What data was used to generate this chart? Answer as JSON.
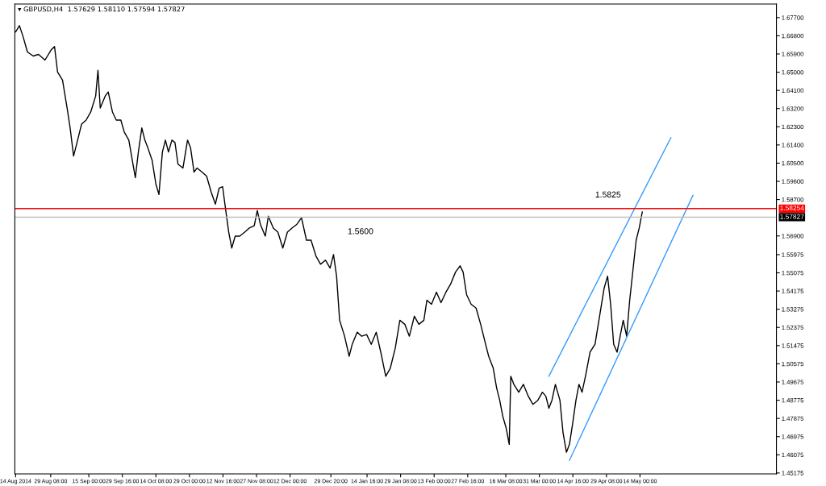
{
  "chart_data": {
    "type": "line",
    "title": "▾ GBPUSD,H4  1.57629 1.58110 1.57594 1.57827",
    "xlim": [
      "2014-08-13T16:00",
      "2015-07-12T16:00"
    ],
    "ylim": [
      1.4513,
      1.6837
    ],
    "xticks": [
      {
        "value": "2014-08-14T00:00",
        "label": "14 Aug 2014"
      },
      {
        "value": "2014-08-29T08:00",
        "label": "29 Aug 08:00"
      },
      {
        "value": "2014-09-15T00:00",
        "label": "15 Sep 00:00"
      },
      {
        "value": "2014-09-29T16:00",
        "label": "29 Sep 16:00"
      },
      {
        "value": "2014-10-14T08:00",
        "label": "14 Oct 08:00"
      },
      {
        "value": "2014-10-29T00:00",
        "label": "29 Oct 00:00"
      },
      {
        "value": "2014-11-12T16:00",
        "label": "12 Nov 16:00"
      },
      {
        "value": "2014-11-27T08:00",
        "label": "27 Nov 08:00"
      },
      {
        "value": "2014-12-12T00:00",
        "label": "12 Dec 00:00"
      },
      {
        "value": "2014-12-29T20:00",
        "label": "29 Dec 20:00"
      },
      {
        "value": "2015-01-14T16:00",
        "label": "14 Jan 16:00"
      },
      {
        "value": "2015-01-29T08:00",
        "label": "29 Jan 08:00"
      },
      {
        "value": "2015-02-13T00:00",
        "label": "13 Feb 00:00"
      },
      {
        "value": "2015-02-27T16:00",
        "label": "27 Feb 16:00"
      },
      {
        "value": "2015-03-16T08:00",
        "label": "16 Mar 08:00"
      },
      {
        "value": "2015-03-31T00:00",
        "label": "31 Mar 00:00"
      },
      {
        "value": "2015-04-14T16:00",
        "label": "14 Apr 16:00"
      },
      {
        "value": "2015-04-29T08:00",
        "label": "29 Apr 08:00"
      },
      {
        "value": "2015-05-14T00:00",
        "label": "14 May 00:00"
      }
    ],
    "yticks": [
      {
        "value": 1.677,
        "label": "1.67700"
      },
      {
        "value": 1.668,
        "label": "1.66800"
      },
      {
        "value": 1.659,
        "label": "1.65900"
      },
      {
        "value": 1.65,
        "label": "1.65000"
      },
      {
        "value": 1.641,
        "label": "1.64100"
      },
      {
        "value": 1.632,
        "label": "1.63200"
      },
      {
        "value": 1.623,
        "label": "1.62300"
      },
      {
        "value": 1.614,
        "label": "1.61400"
      },
      {
        "value": 1.605,
        "label": "1.60500"
      },
      {
        "value": 1.596,
        "label": "1.59600"
      },
      {
        "value": 1.587,
        "label": "1.58700"
      },
      {
        "value": 1.569,
        "label": "1.56900"
      },
      {
        "value": 1.55975,
        "label": "1.55975"
      },
      {
        "value": 1.55075,
        "label": "1.55075"
      },
      {
        "value": 1.54175,
        "label": "1.54175"
      },
      {
        "value": 1.53275,
        "label": "1.53275"
      },
      {
        "value": 1.52375,
        "label": "1.52375"
      },
      {
        "value": 1.51475,
        "label": "1.51475"
      },
      {
        "value": 1.50575,
        "label": "1.50575"
      },
      {
        "value": 1.49675,
        "label": "1.49675"
      },
      {
        "value": 1.48775,
        "label": "1.48775"
      },
      {
        "value": 1.47875,
        "label": "1.47875"
      },
      {
        "value": 1.46975,
        "label": "1.46975"
      },
      {
        "value": 1.46075,
        "label": "1.46075"
      },
      {
        "value": 1.45175,
        "label": "1.45175"
      }
    ],
    "grid": false,
    "series": [
      {
        "color": "#000000",
        "x": [
          "2014-08-14T00:00",
          "2014-08-15T16:00",
          "2014-08-17T04:00",
          "2014-08-19T04:00",
          "2014-08-21T16:00",
          "2014-08-24T00:00",
          "2014-08-26T20:00",
          "2014-08-29T16:00",
          "2014-08-31T00:00",
          "2014-09-01T08:00",
          "2014-09-03T12:00",
          "2014-09-05T12:00",
          "2014-09-06T20:00",
          "2014-09-08T08:00",
          "2014-09-09T16:00",
          "2014-09-11T20:00",
          "2014-09-13T20:00",
          "2014-09-15T20:00",
          "2014-09-18T00:00",
          "2014-09-19T00:00",
          "2014-09-20T00:00",
          "2014-09-22T04:00",
          "2014-09-23T12:00",
          "2014-09-25T08:00",
          "2014-09-27T00:00",
          "2014-09-29T00:00",
          "2014-09-30T12:00",
          "2014-10-02T12:00",
          "2014-10-04T00:00",
          "2014-10-05T08:00",
          "2014-10-06T16:00",
          "2014-10-08T04:00",
          "2014-10-09T12:00",
          "2014-10-10T20:00",
          "2014-10-12T16:00",
          "2014-10-14T08:00",
          "2014-10-15T16:00",
          "2014-10-17T04:00",
          "2014-10-18T12:00",
          "2014-10-19T20:00",
          "2014-10-21T08:00",
          "2014-10-22T16:00",
          "2014-10-24T00:00",
          "2014-10-26T04:00",
          "2014-10-28T04:00",
          "2014-10-29T12:00",
          "2014-10-31T00:00",
          "2014-11-01T08:00",
          "2014-11-03T12:00",
          "2014-11-05T12:00",
          "2014-11-07T12:00",
          "2014-11-09T08:00",
          "2014-11-11T00:00",
          "2014-11-12T12:00",
          "2014-11-13T20:00",
          "2014-11-15T04:00",
          "2014-11-16T12:00",
          "2014-11-18T00:00",
          "2014-11-20T00:00",
          "2014-11-22T04:00",
          "2014-11-24T04:00",
          "2014-11-26T08:00",
          "2014-11-27T16:00",
          "2014-11-29T00:00",
          "2014-12-01T04:00",
          "2014-12-02T12:00",
          "2014-12-04T16:00",
          "2014-12-06T16:00",
          "2014-12-08T20:00",
          "2014-12-10T20:00",
          "2014-12-12T20:00",
          "2014-12-15T00:00",
          "2014-12-17T00:00",
          "2014-12-19T04:00",
          "2014-12-21T04:00",
          "2014-12-23T08:00",
          "2014-12-25T08:00",
          "2014-12-27T12:00",
          "2014-12-29T12:00",
          "2014-12-31T00:00",
          "2015-01-01T08:00",
          "2015-01-02T16:00",
          "2015-01-04T20:00",
          "2015-01-06T20:00",
          "2015-01-08T04:00",
          "2015-01-10T08:00",
          "2015-01-12T08:00",
          "2015-01-14T12:00",
          "2015-01-16T12:00",
          "2015-01-18T16:00",
          "2015-01-20T16:00",
          "2015-01-22T20:00",
          "2015-01-24T20:00",
          "2015-01-27T00:00",
          "2015-01-29T00:00",
          "2015-01-31T04:00",
          "2015-02-02T04:00",
          "2015-02-04T08:00",
          "2015-02-06T08:00",
          "2015-02-08T12:00",
          "2015-02-09T20:00",
          "2015-02-11T20:00",
          "2015-02-14T00:00",
          "2015-02-16T00:00",
          "2015-02-18T04:00",
          "2015-02-20T04:00",
          "2015-02-22T08:00",
          "2015-02-24T08:00",
          "2015-02-25T16:00",
          "2015-02-27T04:00",
          "2015-03-01T04:00",
          "2015-03-03T08:00",
          "2015-03-05T08:00",
          "2015-03-07T12:00",
          "2015-03-08T20:00",
          "2015-03-10T20:00",
          "2015-03-12T08:00",
          "2015-03-13T16:00",
          "2015-03-15T00:00",
          "2015-03-16T12:00",
          "2015-03-17T20:00",
          "2015-03-18T12:00",
          "2015-03-19T20:00",
          "2015-03-22T00:00",
          "2015-03-24T00:00",
          "2015-03-26T04:00",
          "2015-03-28T04:00",
          "2015-03-30T08:00",
          "2015-04-01T08:00",
          "2015-04-02T20:00",
          "2015-04-04T04:00",
          "2015-04-05T12:00",
          "2015-04-07T00:00",
          "2015-04-09T00:00",
          "2015-04-10T08:00",
          "2015-04-11T20:00",
          "2015-04-13T04:00",
          "2015-04-14T12:00",
          "2015-04-16T00:00",
          "2015-04-17T08:00",
          "2015-04-18T16:00",
          "2015-04-20T04:00",
          "2015-04-22T04:00",
          "2015-04-24T08:00",
          "2015-04-26T08:00",
          "2015-04-28T08:00",
          "2015-04-29T20:00",
          "2015-05-01T04:00",
          "2015-05-02T12:00",
          "2015-05-04T00:00",
          "2015-05-05T08:00",
          "2015-05-06T16:00",
          "2015-05-08T04:00",
          "2015-05-09T12:00",
          "2015-05-10T20:00",
          "2015-05-12T08:00",
          "2015-05-13T16:00",
          "2015-05-15T00:00"
        ],
        "values": [
          1.6699,
          1.673,
          1.6679,
          1.66,
          1.658,
          1.6588,
          1.656,
          1.6612,
          1.6627,
          1.6501,
          1.6461,
          1.6323,
          1.6224,
          1.6085,
          1.6144,
          1.6243,
          1.6263,
          1.6303,
          1.6382,
          1.6509,
          1.6323,
          1.6382,
          1.6402,
          1.6303,
          1.6263,
          1.6263,
          1.6204,
          1.6164,
          1.6065,
          1.5978,
          1.6105,
          1.6224,
          1.6164,
          1.6125,
          1.6065,
          1.5946,
          1.5895,
          1.6105,
          1.6164,
          1.6105,
          1.6164,
          1.6152,
          1.6045,
          1.6026,
          1.6164,
          1.6125,
          1.6006,
          1.6026,
          1.6006,
          1.5986,
          1.5907,
          1.5847,
          1.5927,
          1.5934,
          1.582,
          1.5709,
          1.563,
          1.5689,
          1.5689,
          1.5709,
          1.5729,
          1.574,
          1.5816,
          1.5748,
          1.5689,
          1.5788,
          1.5729,
          1.5709,
          1.563,
          1.5709,
          1.5729,
          1.5748,
          1.578,
          1.5669,
          1.5669,
          1.559,
          1.555,
          1.557,
          1.5531,
          1.5598,
          1.5491,
          1.5273,
          1.5194,
          1.5095,
          1.5154,
          1.5214,
          1.5194,
          1.5202,
          1.5154,
          1.5214,
          1.5115,
          1.4996,
          1.5036,
          1.5135,
          1.5273,
          1.5253,
          1.5194,
          1.5293,
          1.5253,
          1.5273,
          1.5372,
          1.5352,
          1.5412,
          1.536,
          1.5412,
          1.5451,
          1.5511,
          1.5542,
          1.5511,
          1.54,
          1.5352,
          1.5333,
          1.5253,
          1.5154,
          1.5095,
          1.5036,
          1.4937,
          1.4877,
          1.4798,
          1.4739,
          1.4659,
          1.4996,
          1.4956,
          1.4917,
          1.4956,
          1.4897,
          1.4857,
          1.4877,
          1.4917,
          1.4897,
          1.4838,
          1.4877,
          1.4956,
          1.4877,
          1.4719,
          1.462,
          1.4659,
          1.4758,
          1.4877,
          1.4956,
          1.4917,
          1.4996,
          1.5115,
          1.5154,
          1.5293,
          1.5432,
          1.5491,
          1.5352,
          1.5154,
          1.5115,
          1.5194,
          1.5273,
          1.5194,
          1.5372,
          1.5511,
          1.5669,
          1.5729,
          1.5808
        ]
      },
      {
        "type": "line",
        "color": "#3399ff",
        "x": [
          "2015-04-04T04:00",
          "2015-05-27T12:00"
        ],
        "values": [
          1.4996,
          1.6176
        ]
      },
      {
        "type": "line",
        "color": "#3399ff",
        "x": [
          "2015-04-13T04:00",
          "2015-06-06T04:00"
        ],
        "values": [
          1.458,
          1.5891
        ]
      }
    ],
    "ref_lines": [
      {
        "axis": "y",
        "value": 1.58254,
        "label": "1.58254",
        "color": "#ff0000"
      },
      {
        "axis": "y",
        "value": 1.57827,
        "label": "1.57827",
        "color": "#c0c0c0"
      }
    ],
    "annotations": [
      {
        "text": "1.5825",
        "y": 1.5825
      },
      "1.5600"
    ]
  }
}
